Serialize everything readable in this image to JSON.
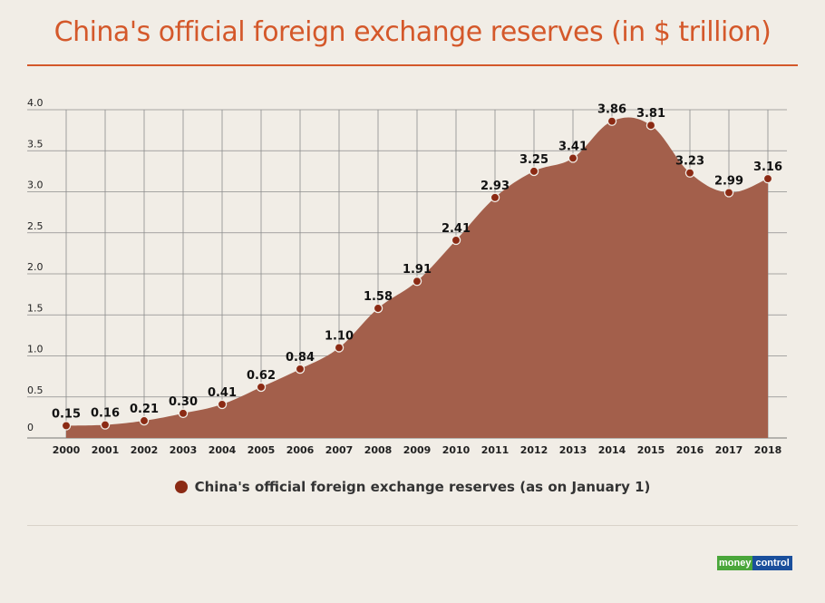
{
  "title": "China's official foreign exchange reserves (in $ trillion)",
  "legend": {
    "label": "China's official foreign exchange reserves (as on January 1)"
  },
  "logo": {
    "part1": "money",
    "part2": "control"
  },
  "colors": {
    "title": "#d4582a",
    "area": "#a35f4b",
    "point": "#8b2a14",
    "grid": "#8c8c8c"
  },
  "chart_data": {
    "type": "area",
    "title": "China's official foreign exchange reserves (in $ trillion)",
    "xlabel": "",
    "ylabel": "",
    "ylim": [
      0,
      4.0
    ],
    "yticks": [
      "0",
      "0.5",
      "1.0",
      "1.5",
      "2.0",
      "2.5",
      "3.0",
      "3.5",
      "4.0"
    ],
    "ytick_values": [
      0,
      0.5,
      1.0,
      1.5,
      2.0,
      2.5,
      3.0,
      3.5,
      4.0
    ],
    "grid": true,
    "legend_position": "bottom",
    "categories": [
      "2000",
      "2001",
      "2002",
      "2003",
      "2004",
      "2005",
      "2006",
      "2007",
      "2008",
      "2009",
      "2010",
      "2011",
      "2012",
      "2013",
      "2014",
      "2015",
      "2016",
      "2017",
      "2018"
    ],
    "series": [
      {
        "name": "China's official foreign exchange reserves (as on January 1)",
        "values": [
          0.15,
          0.16,
          0.21,
          0.3,
          0.41,
          0.62,
          0.84,
          1.1,
          1.58,
          1.91,
          2.41,
          2.93,
          3.25,
          3.41,
          3.86,
          3.81,
          3.23,
          2.99,
          3.16
        ],
        "labels": [
          "0.15",
          "0.16",
          "0.21",
          "0.30",
          "0.41",
          "0.62",
          "0.84",
          "1.10",
          "1.58",
          "1.91",
          "2.41",
          "2.93",
          "3.25",
          "3.41",
          "3.86",
          "3.81",
          "3.23",
          "2.99",
          "3.16"
        ]
      }
    ]
  }
}
